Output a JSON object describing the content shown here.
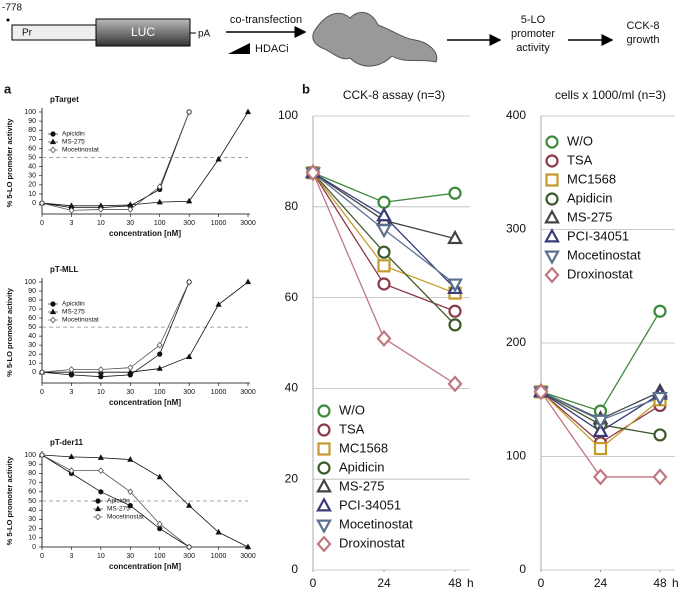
{
  "diagram": {
    "position": "-778",
    "promoter": "Pr",
    "reporter": "LUC",
    "polyA": "pA",
    "step1": "co-transfection",
    "inhibitor": "HDACi",
    "step2": [
      "5-LO",
      "promoter",
      "activity"
    ],
    "step3": [
      "CCK-8",
      "growth"
    ]
  },
  "panels": [
    "a",
    "b"
  ],
  "chart_data": [
    {
      "type": "line",
      "title": "pTarget",
      "xlabel": "concentration [nM]",
      "ylabel": "% 5-LO promoter activity",
      "categories": [
        "0",
        "3",
        "10",
        "30",
        "100",
        "300",
        "1000",
        "3000"
      ],
      "ylim": [
        -12,
        100
      ],
      "yticks": [
        0,
        10,
        20,
        30,
        40,
        50,
        60,
        70,
        80,
        90,
        100
      ],
      "grid": false,
      "reference_line": 50,
      "legend": "upper left",
      "series": [
        {
          "name": "Apicidin",
          "color": "#111111",
          "marker": "circle",
          "filled": true,
          "values": [
            0,
            -5,
            -5,
            -3,
            15,
            100,
            null,
            null
          ]
        },
        {
          "name": "MS-275",
          "color": "#111111",
          "marker": "triangle",
          "filled": true,
          "values": [
            0,
            -3,
            -3,
            -2,
            1,
            2,
            48,
            100
          ]
        },
        {
          "name": "Mocetinostat",
          "color": "#555555",
          "marker": "diamond",
          "filled": false,
          "values": [
            0,
            -8,
            -7,
            -7,
            18,
            100,
            null,
            null
          ]
        }
      ]
    },
    {
      "type": "line",
      "title": "pT-MLL",
      "xlabel": "concentration [nM]",
      "ylabel": "% 5-LO promoter activity",
      "categories": [
        "0",
        "3",
        "10",
        "30",
        "100",
        "300",
        "1000",
        "3000"
      ],
      "ylim": [
        -12,
        100
      ],
      "yticks": [
        0,
        10,
        20,
        30,
        40,
        50,
        60,
        70,
        80,
        90,
        100
      ],
      "grid": false,
      "reference_line": 50,
      "legend": "upper left",
      "series": [
        {
          "name": "Apicidin",
          "color": "#111111",
          "marker": "circle",
          "filled": true,
          "values": [
            0,
            -3,
            -5,
            -3,
            20,
            100,
            null,
            null
          ]
        },
        {
          "name": "MS-275",
          "color": "#111111",
          "marker": "triangle",
          "filled": true,
          "values": [
            0,
            0,
            0,
            0,
            4,
            17,
            75,
            100
          ]
        },
        {
          "name": "Mocetinostat",
          "color": "#555555",
          "marker": "diamond",
          "filled": false,
          "values": [
            0,
            3,
            3,
            5,
            30,
            100,
            null,
            null
          ]
        }
      ]
    },
    {
      "type": "line",
      "title": "pT-der11",
      "xlabel": "concentration [nM]",
      "ylabel": "% 5-LO promoter activity",
      "categories": [
        "0",
        "3",
        "10",
        "30",
        "100",
        "300",
        "1000",
        "3000"
      ],
      "ylim": [
        0,
        100
      ],
      "yticks": [
        0,
        10,
        20,
        30,
        40,
        50,
        60,
        70,
        80,
        90,
        100
      ],
      "grid": false,
      "reference_line": 50,
      "legend": "lower left",
      "series": [
        {
          "name": "Apicidin",
          "color": "#111111",
          "marker": "circle",
          "filled": true,
          "values": [
            100,
            80,
            60,
            45,
            20,
            0,
            null,
            null
          ]
        },
        {
          "name": "MS-275",
          "color": "#111111",
          "marker": "triangle",
          "filled": true,
          "values": [
            100,
            98,
            97,
            95,
            76,
            45,
            16,
            0
          ]
        },
        {
          "name": "Mocetinostat",
          "color": "#555555",
          "marker": "diamond",
          "filled": false,
          "values": [
            100,
            83,
            83,
            60,
            25,
            0,
            null,
            null
          ]
        }
      ]
    },
    {
      "type": "line",
      "title": "CCK-8 assay (n=3)",
      "xlabel": "h",
      "x": [
        0,
        24,
        48
      ],
      "xlim": [
        0,
        48
      ],
      "xticks": [
        0,
        24,
        48
      ],
      "ylim": [
        0,
        100
      ],
      "yticks": [
        0,
        20,
        40,
        60,
        80,
        100
      ],
      "grid": true,
      "legend": "lower left",
      "series": [
        {
          "name": "W/O",
          "color": "#3a8a3a",
          "marker": "circle",
          "filled": false,
          "values": [
            87.5,
            81,
            83
          ]
        },
        {
          "name": "TSA",
          "color": "#8b3a4a",
          "marker": "circle",
          "filled": false,
          "values": [
            87.5,
            63,
            57
          ]
        },
        {
          "name": "MC1568",
          "color": "#c49a2a",
          "marker": "square",
          "filled": false,
          "values": [
            87.5,
            67,
            61
          ]
        },
        {
          "name": "Apidicin",
          "color": "#3d5a2a",
          "marker": "circle",
          "filled": false,
          "values": [
            87.5,
            70,
            54
          ]
        },
        {
          "name": "MS-275",
          "color": "#444444",
          "marker": "triangle",
          "filled": false,
          "values": [
            87.5,
            77,
            73
          ]
        },
        {
          "name": "PCI-34051",
          "color": "#3a3a7a",
          "marker": "triangle",
          "filled": false,
          "values": [
            87.5,
            78,
            62
          ]
        },
        {
          "name": "Mocetinostat",
          "color": "#5a7090",
          "marker": "triangle-down",
          "filled": false,
          "values": [
            87.5,
            75,
            63
          ]
        },
        {
          "name": "Droxinostat",
          "color": "#c07880",
          "marker": "diamond",
          "filled": false,
          "values": [
            87.5,
            51,
            41
          ]
        }
      ]
    },
    {
      "type": "line",
      "title": "cells x 1000/ml (n=3)",
      "xlabel": "h",
      "x": [
        0,
        24,
        48
      ],
      "xlim": [
        0,
        48
      ],
      "xticks": [
        0,
        24,
        48
      ],
      "ylim": [
        0,
        400
      ],
      "yticks": [
        0,
        100,
        200,
        300,
        400
      ],
      "grid": true,
      "legend": "upper left",
      "series": [
        {
          "name": "W/O",
          "color": "#3a8a3a",
          "marker": "circle",
          "filled": false,
          "values": [
            157,
            140,
            228
          ]
        },
        {
          "name": "TSA",
          "color": "#8b3a4a",
          "marker": "circle",
          "filled": false,
          "values": [
            157,
            112,
            145
          ]
        },
        {
          "name": "MC1568",
          "color": "#c49a2a",
          "marker": "square",
          "filled": false,
          "values": [
            157,
            107,
            150
          ]
        },
        {
          "name": "Apidicin",
          "color": "#3d5a2a",
          "marker": "circle",
          "filled": false,
          "values": [
            157,
            128,
            119
          ]
        },
        {
          "name": "MS-275",
          "color": "#444444",
          "marker": "triangle",
          "filled": false,
          "values": [
            157,
            133,
            157
          ]
        },
        {
          "name": "PCI-34051",
          "color": "#3a3a7a",
          "marker": "triangle",
          "filled": false,
          "values": [
            157,
            122,
            155
          ]
        },
        {
          "name": "Mocetinostat",
          "color": "#5a7090",
          "marker": "triangle-down",
          "filled": false,
          "values": [
            157,
            132,
            152
          ]
        },
        {
          "name": "Droxinostat",
          "color": "#c07880",
          "marker": "diamond",
          "filled": false,
          "values": [
            157,
            82,
            82
          ]
        }
      ]
    }
  ]
}
